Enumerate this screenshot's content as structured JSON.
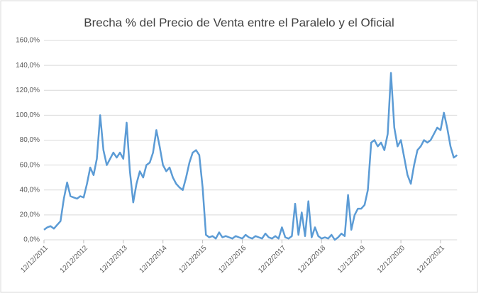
{
  "chart_data": {
    "type": "line",
    "title": "Brecha % del Precio de Venta entre el  Paralelo y el Oficial",
    "categories": [
      "12/12/2011",
      null,
      null,
      null,
      null,
      null,
      null,
      null,
      null,
      null,
      null,
      null,
      "12/12/2012",
      null,
      null,
      null,
      null,
      null,
      null,
      null,
      null,
      null,
      null,
      null,
      "12/12/2013",
      null,
      null,
      null,
      null,
      null,
      null,
      null,
      null,
      null,
      null,
      null,
      "12/12/2014",
      null,
      null,
      null,
      null,
      null,
      null,
      null,
      null,
      null,
      null,
      null,
      "12/12/2015",
      null,
      null,
      null,
      null,
      null,
      null,
      null,
      null,
      null,
      null,
      null,
      "12/12/2016",
      null,
      null,
      null,
      null,
      null,
      null,
      null,
      null,
      null,
      null,
      null,
      "12/12/2017",
      null,
      null,
      null,
      null,
      null,
      null,
      null,
      null,
      null,
      null,
      null,
      "12/12/2018",
      null,
      null,
      null,
      null,
      null,
      null,
      null,
      null,
      null,
      null,
      null,
      "12/12/2019",
      null,
      null,
      null,
      null,
      null,
      null,
      null,
      null,
      null,
      null,
      null,
      "12/12/2020",
      null,
      null,
      null,
      null,
      null,
      null,
      null,
      null,
      null,
      null,
      null,
      "12/12/2021",
      null,
      null,
      null,
      null,
      null
    ],
    "series": [
      {
        "color": "#5b9bd5",
        "values": [
          8,
          10,
          11,
          9,
          12,
          15,
          33,
          46,
          35,
          34,
          33,
          35,
          34,
          45,
          58,
          52,
          65,
          100,
          72,
          60,
          65,
          70,
          66,
          70,
          65,
          94,
          55,
          30,
          45,
          55,
          50,
          60,
          62,
          70,
          88,
          75,
          60,
          55,
          58,
          50,
          45,
          42,
          40,
          50,
          62,
          70,
          72,
          68,
          42,
          4,
          2,
          3,
          1,
          6,
          2,
          3,
          2,
          1,
          3,
          2,
          1,
          4,
          2,
          1,
          3,
          2,
          1,
          5,
          2,
          1,
          3,
          1,
          10,
          2,
          1,
          3,
          29,
          4,
          22,
          3,
          31,
          2,
          10,
          3,
          1,
          2,
          1,
          4,
          0,
          2,
          5,
          3,
          36,
          8,
          20,
          25,
          25,
          28,
          40,
          78,
          80,
          75,
          78,
          72,
          85,
          134,
          90,
          75,
          80,
          66,
          52,
          45,
          60,
          72,
          75,
          80,
          78,
          80,
          85,
          90,
          88,
          102,
          90,
          75,
          66,
          68
        ]
      }
    ],
    "ylim": [
      0,
      160
    ],
    "yticks": [
      {
        "value": 0,
        "label": "0,0%"
      },
      {
        "value": 20,
        "label": "20,0%"
      },
      {
        "value": 40,
        "label": "40,0%"
      },
      {
        "value": 60,
        "label": "60,0%"
      },
      {
        "value": 80,
        "label": "80,0%"
      },
      {
        "value": 100,
        "label": "100,0%"
      },
      {
        "value": 120,
        "label": "120,0%"
      },
      {
        "value": 140,
        "label": "140,0%"
      },
      {
        "value": 160,
        "label": "160,0%"
      }
    ],
    "grid": true
  }
}
